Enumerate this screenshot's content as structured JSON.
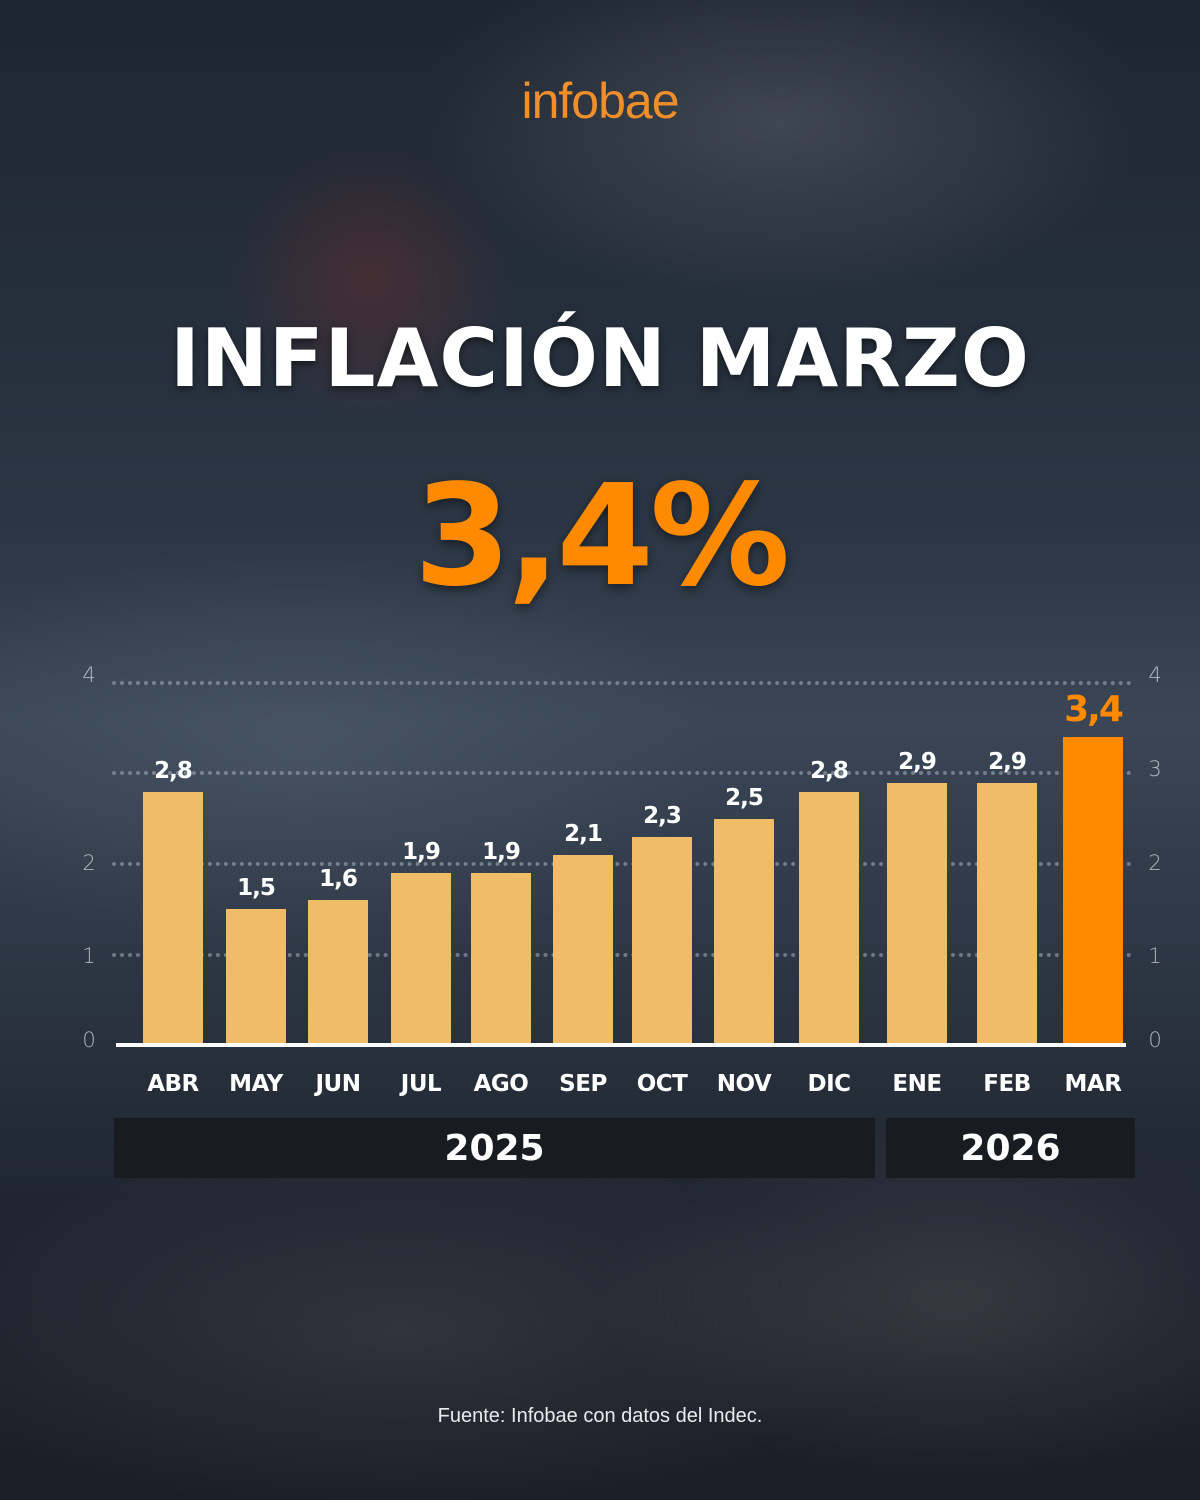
{
  "brand": {
    "logo_text": "infobae",
    "accent_color": "#ff8a00",
    "logo_color": "#ef8f2c"
  },
  "header": {
    "title": "INFLACIÓN MARZO",
    "headline_value": "3,4%"
  },
  "footer": {
    "source": "Fuente: Infobae con datos del Indec."
  },
  "chart_data": {
    "type": "bar",
    "title": "INFLACIÓN MARZO",
    "subtitle": "3,4%",
    "categories": [
      "ABR",
      "MAY",
      "JUN",
      "JUL",
      "AGO",
      "SEP",
      "OCT",
      "NOV",
      "DIC",
      "ENE",
      "FEB",
      "MAR"
    ],
    "values": [
      2.8,
      1.5,
      1.6,
      1.9,
      1.9,
      2.1,
      2.3,
      2.5,
      2.8,
      2.9,
      2.9,
      3.4
    ],
    "value_labels": [
      "2,8",
      "1,5",
      "1,6",
      "1,9",
      "1,9",
      "2,1",
      "2,3",
      "2,5",
      "2,8",
      "2,9",
      "2,9",
      "3,4"
    ],
    "highlight_index": 11,
    "colors": {
      "bar": "#f1bc67",
      "highlight": "#ff8a00"
    },
    "year_groups": [
      {
        "label": "2025",
        "categories": [
          "ABR",
          "MAY",
          "JUN",
          "JUL",
          "AGO",
          "SEP",
          "OCT",
          "NOV",
          "DIC"
        ]
      },
      {
        "label": "2026",
        "categories": [
          "ENE",
          "FEB",
          "MAR"
        ]
      }
    ],
    "y_ticks_left": [
      "0",
      "1",
      "2",
      "4"
    ],
    "y_ticks_right": [
      "0",
      "1",
      "2",
      "3",
      "4"
    ],
    "ylim": [
      0,
      4
    ],
    "grid": true,
    "grid_style": "dotted",
    "xlabel": "",
    "ylabel": "",
    "legend": null,
    "source": "Fuente: Infobae con datos del Indec."
  }
}
